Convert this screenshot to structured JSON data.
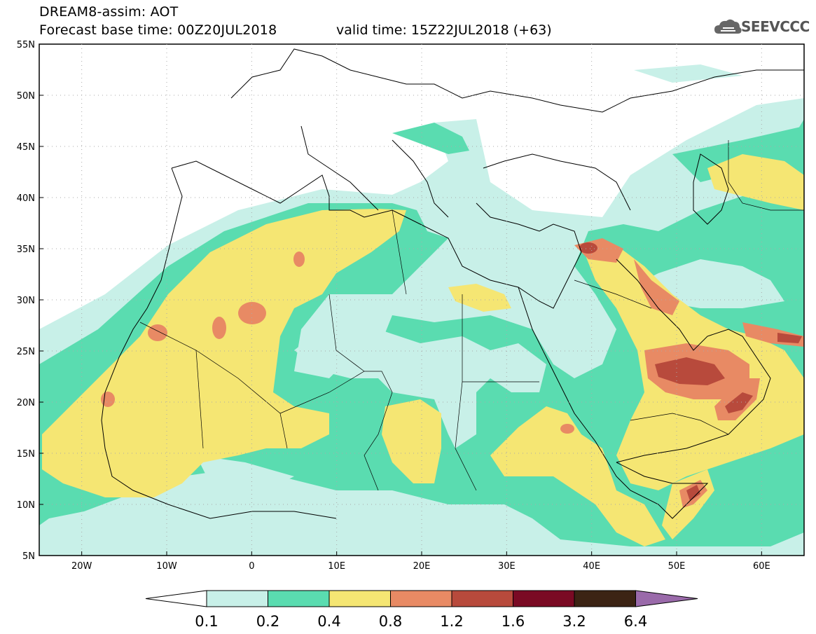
{
  "header": {
    "line1": "DREAM8-assim: AOT",
    "line2": "Forecast base time: 00Z20JUL2018",
    "valid": "valid time: 15Z22JUL2018 (+63)",
    "logo": "SEEVCCC"
  },
  "map": {
    "lon_range": [
      -25,
      65
    ],
    "lat_range": [
      5,
      55
    ],
    "lon_ticks": [
      "20W",
      "10W",
      "0",
      "10E",
      "20E",
      "30E",
      "40E",
      "50E",
      "60E"
    ],
    "lat_ticks": [
      "55N",
      "50N",
      "45N",
      "40N",
      "35N",
      "30N",
      "25N",
      "20N",
      "15N",
      "10N",
      "5N"
    ]
  },
  "colorbar": {
    "labels": [
      "0.1",
      "0.2",
      "0.4",
      "0.8",
      "1.2",
      "1.6",
      "3.2",
      "6.4"
    ],
    "colors": [
      "#ffffff",
      "#c8f0e8",
      "#5adcb0",
      "#f5e673",
      "#e88a64",
      "#b84a3c",
      "#7a0a24",
      "#3c2414",
      "#9a6aaa"
    ]
  }
}
